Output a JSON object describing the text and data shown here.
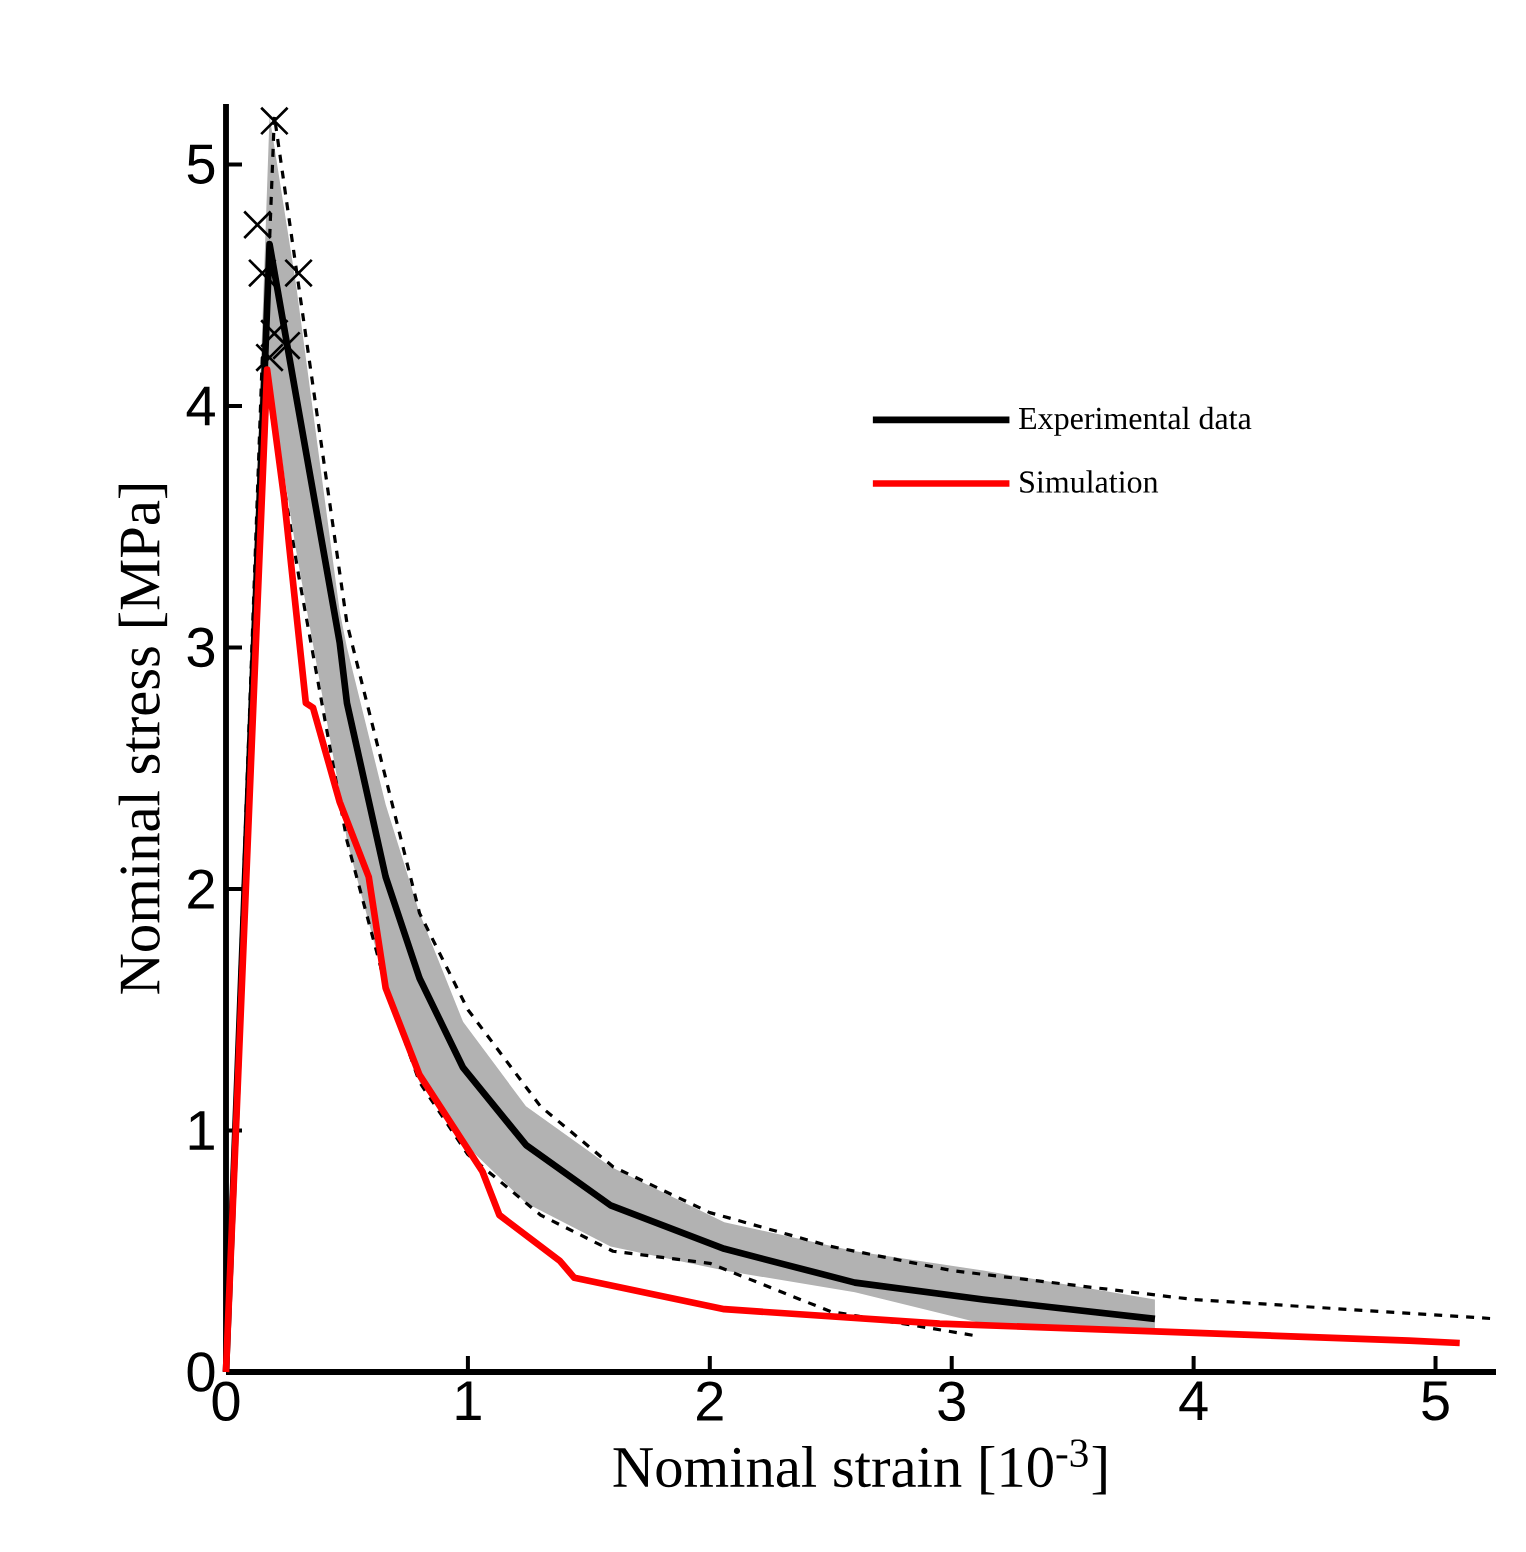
{
  "chart_data": {
    "type": "line",
    "xlabel": "Nominal strain  [10$^{-3}$]",
    "ylabel": "Nominal stress  [MPa]",
    "xlim": [
      0,
      5.25
    ],
    "ylim": [
      0,
      5.25
    ],
    "xticks": [
      0,
      1,
      2,
      3,
      4,
      5
    ],
    "yticks": [
      0,
      1,
      2,
      3,
      4,
      5
    ],
    "grid": false,
    "legend": "top right",
    "series": [
      {
        "color": "#000000",
        "line_style": "dashed",
        "x": [
          0,
          0.2,
          0.3,
          0.5,
          0.8,
          1.0,
          1.3,
          1.6,
          2.0,
          2.5,
          3.0,
          4.0,
          5.25
        ],
        "values": [
          0,
          5.2,
          4.5,
          3.1,
          1.9,
          1.5,
          1.1,
          0.85,
          0.66,
          0.52,
          0.42,
          0.3,
          0.22
        ]
      },
      {
        "color": "#000000",
        "line_style": "dashed",
        "x": [
          0,
          0.15,
          0.3,
          0.5,
          0.66,
          0.8,
          1.0,
          1.3,
          1.6,
          2.0,
          2.5,
          3.1
        ],
        "values": [
          0,
          4.2,
          3.3,
          2.2,
          1.6,
          1.2,
          0.9,
          0.65,
          0.5,
          0.45,
          0.25,
          0.15
        ]
      },
      {
        "name": "Experimental data",
        "color": "#000000",
        "x": [
          0,
          0.18,
          0.29,
          0.47,
          0.5,
          0.66,
          0.8,
          0.98,
          1.24,
          1.59,
          2.06,
          2.6,
          3.13,
          3.84
        ],
        "values": [
          0,
          4.67,
          4.04,
          3.02,
          2.77,
          2.05,
          1.63,
          1.26,
          0.94,
          0.69,
          0.51,
          0.37,
          0.3,
          0.22
        ],
        "upper": [
          0,
          5.2,
          4.5,
          3.15,
          3.0,
          2.35,
          1.9,
          1.45,
          1.1,
          0.85,
          0.62,
          0.5,
          0.42,
          0.3
        ],
        "lower": [
          0,
          4.1,
          3.4,
          2.4,
          2.2,
          1.6,
          1.2,
          0.95,
          0.7,
          0.52,
          0.42,
          0.33,
          0.2,
          0.18
        ]
      },
      {
        "name": "Simulation",
        "color": "#ff0000",
        "x": [
          0,
          0.17,
          0.24,
          0.33,
          0.36,
          0.47,
          0.59,
          0.66,
          0.8,
          1.06,
          1.13,
          1.38,
          1.44,
          2.06,
          2.95,
          4.89,
          5.1
        ],
        "values": [
          0,
          4.15,
          3.62,
          2.77,
          2.75,
          2.36,
          2.05,
          1.59,
          1.23,
          0.83,
          0.65,
          0.46,
          0.39,
          0.26,
          0.2,
          0.13,
          0.12
        ]
      },
      {
        "type": "scatter",
        "color": "#000000",
        "marker": "cross",
        "x": [
          0.2,
          0.13,
          0.3,
          0.15,
          0.2,
          0.25,
          0.18
        ],
        "values": [
          5.18,
          4.75,
          4.55,
          4.55,
          4.3,
          4.25,
          4.2
        ]
      }
    ]
  }
}
